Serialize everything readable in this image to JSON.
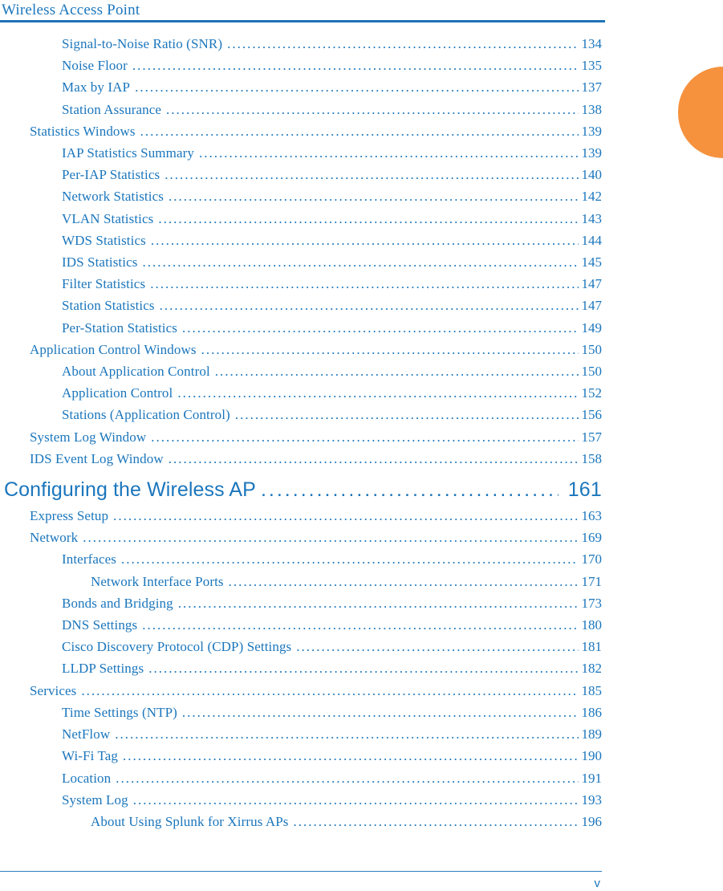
{
  "header": {
    "title": "Wireless Access Point"
  },
  "footer": {
    "page_number": "v"
  },
  "colors": {
    "text_blue": "#1b76bc",
    "rule_blue": "#1f72b8",
    "tab_orange": "#f6923e"
  },
  "toc": {
    "entries": [
      {
        "label": "Signal-to-Noise Ratio (SNR)",
        "page": "134",
        "level": 2,
        "style": "entry"
      },
      {
        "label": "Noise Floor",
        "page": "135",
        "level": 2,
        "style": "entry"
      },
      {
        "label": "Max by IAP",
        "page": "137",
        "level": 2,
        "style": "entry"
      },
      {
        "label": "Station Assurance",
        "page": "138",
        "level": 2,
        "style": "entry"
      },
      {
        "label": "Statistics Windows",
        "page": "139",
        "level": 1,
        "style": "entry"
      },
      {
        "label": "IAP Statistics Summary",
        "page": "139",
        "level": 2,
        "style": "entry"
      },
      {
        "label": "Per-IAP Statistics",
        "page": "140",
        "level": 2,
        "style": "entry"
      },
      {
        "label": "Network Statistics",
        "page": "142",
        "level": 2,
        "style": "entry"
      },
      {
        "label": "VLAN Statistics",
        "page": "143",
        "level": 2,
        "style": "entry"
      },
      {
        "label": "WDS Statistics",
        "page": "144",
        "level": 2,
        "style": "entry"
      },
      {
        "label": "IDS Statistics",
        "page": "145",
        "level": 2,
        "style": "entry"
      },
      {
        "label": "Filter Statistics",
        "page": "147",
        "level": 2,
        "style": "entry"
      },
      {
        "label": "Station Statistics",
        "page": "147",
        "level": 2,
        "style": "entry"
      },
      {
        "label": "Per-Station Statistics",
        "page": "149",
        "level": 2,
        "style": "entry"
      },
      {
        "label": "Application Control Windows",
        "page": "150",
        "level": 1,
        "style": "entry"
      },
      {
        "label": "About Application Control",
        "page": "150",
        "level": 2,
        "style": "entry"
      },
      {
        "label": "Application Control",
        "page": "152",
        "level": 2,
        "style": "entry"
      },
      {
        "label": "Stations (Application Control)",
        "page": "156",
        "level": 2,
        "style": "entry"
      },
      {
        "label": "System Log Window",
        "page": "157",
        "level": 1,
        "style": "entry"
      },
      {
        "label": "IDS Event Log Window",
        "page": "158",
        "level": 1,
        "style": "entry"
      },
      {
        "label": "Configuring the Wireless AP",
        "page": "161",
        "level": 0,
        "style": "chapter"
      },
      {
        "label": "Express Setup",
        "page": "163",
        "level": 1,
        "style": "entry"
      },
      {
        "label": "Network",
        "page": "169",
        "level": 1,
        "style": "entry"
      },
      {
        "label": "Interfaces",
        "page": "170",
        "level": 2,
        "style": "entry"
      },
      {
        "label": "Network Interface Ports",
        "page": "171",
        "level": 3,
        "style": "entry"
      },
      {
        "label": "Bonds and Bridging",
        "page": "173",
        "level": 2,
        "style": "entry"
      },
      {
        "label": "DNS Settings",
        "page": "180",
        "level": 2,
        "style": "entry"
      },
      {
        "label": "Cisco Discovery Protocol (CDP) Settings",
        "page": "181",
        "level": 2,
        "style": "entry"
      },
      {
        "label": "LLDP Settings",
        "page": "182",
        "level": 2,
        "style": "entry"
      },
      {
        "label": "Services",
        "page": "185",
        "level": 1,
        "style": "entry"
      },
      {
        "label": "Time Settings (NTP)",
        "page": "186",
        "level": 2,
        "style": "entry"
      },
      {
        "label": "NetFlow",
        "page": "189",
        "level": 2,
        "style": "entry"
      },
      {
        "label": "Wi-Fi Tag",
        "page": "190",
        "level": 2,
        "style": "entry"
      },
      {
        "label": "Location",
        "page": "191",
        "level": 2,
        "style": "entry"
      },
      {
        "label": "System Log",
        "page": "193",
        "level": 2,
        "style": "entry"
      },
      {
        "label": "About Using Splunk for Xirrus APs",
        "page": "196",
        "level": 3,
        "style": "entry"
      }
    ]
  }
}
